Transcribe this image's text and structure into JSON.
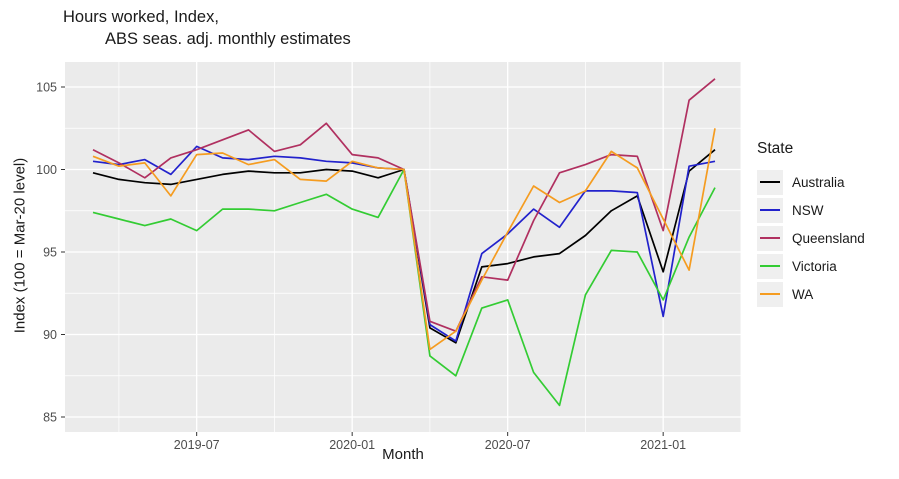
{
  "title": {
    "line1": "Hours worked, Index,",
    "line2": "ABS seas. adj. monthly estimates"
  },
  "legend": {
    "title": "State",
    "position": "right"
  },
  "axes": {
    "x_label": "Month",
    "y_label": "Index (100 = Mar-20 level)",
    "x_ticks": [
      {
        "label": "2019-07",
        "index": 4
      },
      {
        "label": "2020-01",
        "index": 10
      },
      {
        "label": "2020-07",
        "index": 16
      },
      {
        "label": "2021-01",
        "index": 22
      }
    ],
    "x_minor_indices": [
      1,
      7,
      13,
      19,
      25
    ],
    "y_ticks": [
      "85",
      "90",
      "95",
      "100",
      "105"
    ],
    "y_tick_values": [
      85,
      90,
      95,
      100,
      105
    ],
    "y_minor_values": [
      87.5,
      92.5,
      97.5,
      102.5
    ]
  },
  "colors": {
    "panel_background": "#EBEBEB",
    "gridline": "#FFFFFF",
    "tick_text": "#4D4D4D",
    "tick_mark": "#333333",
    "text": "#1A1A1A",
    "legend_key_background": "#EFEFEF"
  },
  "chart_data": {
    "type": "line",
    "title": "Hours worked, Index, ABS seas. adj. monthly estimates",
    "xlabel": "Month",
    "ylabel": "Index (100 = Mar-20 level)",
    "ylim": [
      84.7,
      106.5
    ],
    "grid": true,
    "legend_position": "right",
    "x": [
      "2019-03",
      "2019-04",
      "2019-05",
      "2019-06",
      "2019-07",
      "2019-08",
      "2019-09",
      "2019-10",
      "2019-11",
      "2019-12",
      "2020-01",
      "2020-02",
      "2020-03",
      "2020-04",
      "2020-05",
      "2020-06",
      "2020-07",
      "2020-08",
      "2020-09",
      "2020-10",
      "2020-11",
      "2020-12",
      "2021-01",
      "2021-02",
      "2021-03"
    ],
    "series": [
      {
        "name": "Australia",
        "color": "#000000",
        "values": [
          99.8,
          99.4,
          99.2,
          99.1,
          99.4,
          99.7,
          99.9,
          99.8,
          99.8,
          100.0,
          99.9,
          99.5,
          100.0,
          90.4,
          89.5,
          94.1,
          94.3,
          94.7,
          94.9,
          96.0,
          97.5,
          98.4,
          93.8,
          99.9,
          101.2
        ]
      },
      {
        "name": "NSW",
        "color": "#2222CC",
        "values": [
          100.5,
          100.3,
          100.6,
          99.7,
          101.4,
          100.7,
          100.6,
          100.8,
          100.7,
          100.5,
          100.4,
          100.1,
          100.0,
          90.6,
          89.6,
          94.9,
          96.1,
          97.6,
          96.5,
          98.7,
          98.7,
          98.6,
          91.1,
          100.2,
          100.5
        ]
      },
      {
        "name": "Queensland",
        "color": "#B03060",
        "values": [
          101.2,
          100.4,
          99.5,
          100.7,
          101.2,
          101.8,
          102.4,
          101.1,
          101.5,
          102.8,
          100.9,
          100.7,
          100.0,
          90.8,
          90.2,
          93.5,
          93.3,
          96.9,
          99.8,
          100.3,
          100.9,
          100.8,
          96.3,
          104.2,
          105.5
        ]
      },
      {
        "name": "Victoria",
        "color": "#33CC33",
        "values": [
          97.4,
          97.0,
          96.6,
          97.0,
          96.3,
          97.6,
          97.6,
          97.5,
          98.0,
          98.5,
          97.6,
          97.1,
          100.0,
          88.7,
          87.5,
          91.6,
          92.1,
          87.7,
          85.7,
          92.4,
          95.1,
          95.0,
          92.1,
          95.9,
          98.9
        ]
      },
      {
        "name": "WA",
        "color": "#F59C20",
        "values": [
          100.8,
          100.2,
          100.4,
          98.4,
          100.9,
          101.0,
          100.3,
          100.6,
          99.4,
          99.3,
          100.5,
          100.1,
          100.0,
          89.1,
          90.2,
          93.3,
          96.2,
          99.0,
          98.0,
          98.7,
          101.1,
          100.1,
          97.0,
          93.9,
          102.5
        ]
      }
    ]
  }
}
